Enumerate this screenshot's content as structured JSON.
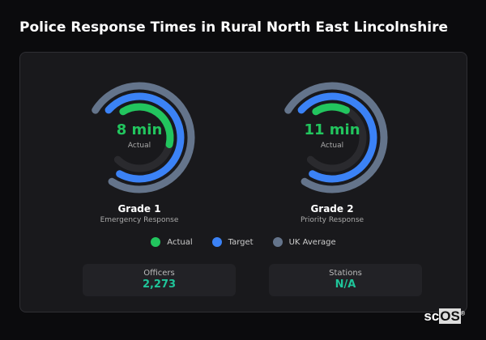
{
  "title": "Police Response Times in Rural North East Lincolnshire",
  "colors": {
    "actual": "#22c55e",
    "target": "#3b82f6",
    "uk_average": "#64748b",
    "track": "#2a2a2e"
  },
  "gauges": [
    {
      "value": "8 min",
      "sub": "Actual",
      "name": "Grade 1",
      "desc": "Emergency Response",
      "actual_fill": 0.5,
      "target_fill": 0.95,
      "uk_fill": 1.0
    },
    {
      "value": "11 min",
      "sub": "Actual",
      "name": "Grade 2",
      "desc": "Priority Response",
      "actual_fill": 0.22,
      "target_fill": 0.95,
      "uk_fill": 1.0
    }
  ],
  "legend": [
    "Actual",
    "Target",
    "UK Average"
  ],
  "stats": [
    {
      "label": "Officers",
      "value": "2,273"
    },
    {
      "label": "Stations",
      "value": "N/A"
    }
  ],
  "logo": "scOS"
}
